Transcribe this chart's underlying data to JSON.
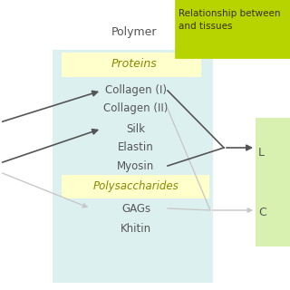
{
  "background_color": "#ffffff",
  "light_blue_bg": "#ddf0f0",
  "yellow_box_color": "#ffffcc",
  "bright_green_box_color": "#b8d400",
  "light_green_bg": "#d8f0b0",
  "title_top_right": "Relationship between\nand tissues",
  "polymer_label": "Polymer",
  "proteins_label": "Proteins",
  "polysaccharides_label": "Polysaccharides",
  "items": [
    "Collagen (I)",
    "Collagen (II)",
    "Silk",
    "Elastin",
    "Myosin",
    "GAGs",
    "Khitin"
  ],
  "right_labels": [
    "L",
    "C"
  ],
  "text_color": "#555555",
  "arrow_dark": "#555555",
  "arrow_light": "#c8c8c8",
  "fig_w": 3.2,
  "fig_h": 3.2,
  "dpi": 100
}
